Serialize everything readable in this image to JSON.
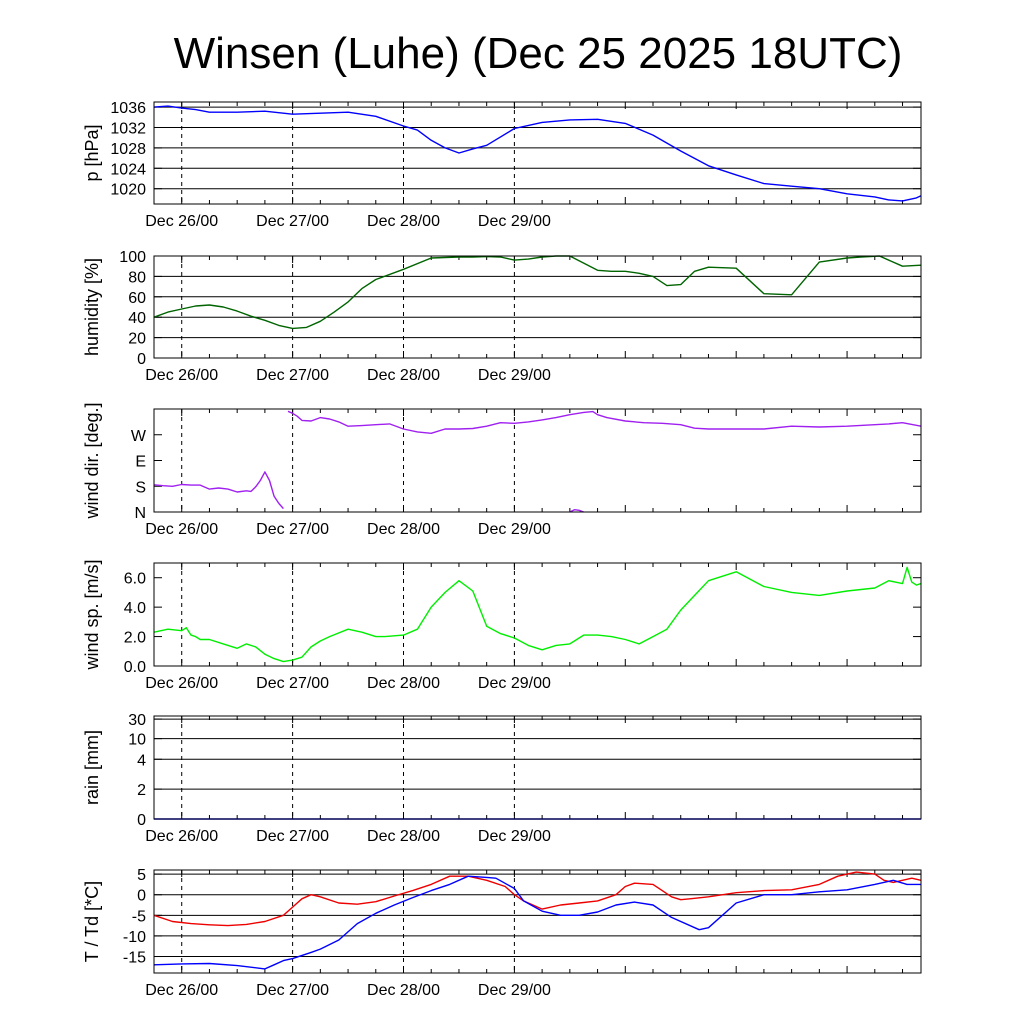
{
  "title": "Winsen (Luhe) (Dec 25 2025 18UTC)",
  "day_labels": [
    "Dec 26/00",
    "Dec 27/00",
    "Dec 28/00",
    "Dec 29/00"
  ],
  "chart_data": [
    {
      "type": "line",
      "ylabel": "p [hPa]",
      "ylim": [
        1017,
        1037
      ],
      "yticks": [
        1020,
        1024,
        1028,
        1032,
        1036
      ],
      "grid": true,
      "series": [
        {
          "color": "#0000ff",
          "x": [
            0,
            3,
            6,
            9,
            12,
            18,
            24,
            30,
            36,
            42,
            48,
            54,
            57,
            60,
            63,
            66,
            69,
            72,
            78,
            84,
            90,
            96,
            102,
            108,
            114,
            120,
            126,
            132,
            138,
            144,
            150,
            156,
            159,
            162,
            165,
            166
          ],
          "y": [
            1036,
            1036.2,
            1035.8,
            1035.5,
            1035,
            1035,
            1035.2,
            1034.6,
            1034.8,
            1035,
            1034.2,
            1032.3,
            1031.5,
            1029.5,
            1028,
            1027,
            1027.8,
            1028.5,
            1031.8,
            1033,
            1033.5,
            1033.6,
            1032.8,
            1030.5,
            1027.4,
            1024.5,
            1022.7,
            1021,
            1020.5,
            1020,
            1019,
            1018.4,
            1017.8,
            1017.6,
            1018.2,
            1018.6
          ]
        }
      ]
    },
    {
      "type": "line",
      "ylabel": "humidity [%]",
      "ylim": [
        0,
        100
      ],
      "yticks": [
        0,
        20,
        40,
        60,
        80,
        100
      ],
      "grid": true,
      "series": [
        {
          "color": "#006400",
          "x": [
            0,
            3,
            6,
            9,
            12,
            15,
            18,
            21,
            24,
            27,
            30,
            33,
            36,
            39,
            42,
            45,
            48,
            54,
            60,
            66,
            69,
            72,
            75,
            78,
            81,
            84,
            87,
            90,
            96,
            99,
            102,
            105,
            108,
            111,
            114,
            117,
            120,
            126,
            132,
            138,
            144,
            150,
            153,
            157,
            162,
            166
          ],
          "y": [
            40,
            45,
            48,
            51,
            52,
            50,
            46,
            41,
            37,
            32,
            29,
            30,
            36,
            45,
            55,
            68,
            77,
            87,
            98,
            99,
            99,
            99.5,
            99,
            96,
            97,
            99,
            100,
            100,
            86,
            85,
            85,
            83,
            80,
            71,
            72,
            85,
            89,
            88,
            63,
            62,
            94,
            98,
            99,
            100,
            90,
            91
          ]
        }
      ]
    },
    {
      "type": "line",
      "ylabel": "wind dir. [deg.]",
      "ylim": [
        0,
        360
      ],
      "yticks": [
        0,
        90,
        180,
        270
      ],
      "ytick_labels": [
        "N",
        "S",
        "E",
        "W"
      ],
      "grid": false,
      "series": [
        {
          "color": "#a020f0",
          "segments": [
            {
              "x": [
                0,
                2,
                4,
                6,
                8,
                10,
                12,
                14,
                16,
                18,
                20,
                21,
                22,
                23,
                24,
                25,
                26,
                27,
                28
              ],
              "y": [
                95,
                92,
                90,
                96,
                94,
                94,
                80,
                84,
                80,
                70,
                74,
                72,
                88,
                110,
                140,
                110,
                55,
                30,
                12
              ]
            },
            {
              "x": [
                29,
                30,
                31,
                32,
                34,
                36,
                38,
                40,
                42,
                45,
                48,
                51,
                54,
                57,
                60,
                63,
                66,
                69,
                72,
                75,
                78,
                81,
                84,
                87,
                90,
                93,
                95,
                96,
                98,
                102,
                106,
                110,
                114,
                117,
                120,
                126,
                132,
                138,
                144,
                150,
                156,
                159,
                162,
                166
              ],
              "y": [
                352,
                345,
                335,
                320,
                318,
                330,
                325,
                315,
                300,
                302,
                305,
                308,
                290,
                280,
                275,
                290,
                290,
                292,
                300,
                312,
                310,
                315,
                322,
                330,
                340,
                348,
                351,
                340,
                330,
                318,
                312,
                310,
                305,
                293,
                290,
                290,
                290,
                300,
                297,
                300,
                305,
                308,
                312,
                300
              ]
            },
            {
              "x": [
                90,
                91,
                92,
                93
              ],
              "y": [
                0,
                8,
                6,
                0
              ]
            }
          ]
        }
      ]
    },
    {
      "type": "line",
      "ylabel": "wind sp. [m/s]",
      "ylim": [
        0,
        7
      ],
      "yticks": [
        0,
        2,
        4,
        6
      ],
      "ytick_labels": [
        "0.0",
        "2.0",
        "4.0",
        "6.0"
      ],
      "grid": false,
      "series": [
        {
          "color": "#00ee00",
          "x": [
            0,
            3,
            6,
            7,
            8,
            9,
            10,
            12,
            15,
            18,
            20,
            22,
            24,
            26,
            27,
            28,
            30,
            32,
            34,
            36,
            38,
            42,
            45,
            48,
            50,
            54,
            57,
            60,
            63,
            66,
            69,
            72,
            75,
            78,
            81,
            84,
            87,
            90,
            93,
            96,
            99,
            102,
            105,
            108,
            111,
            114,
            117,
            120,
            126,
            132,
            138,
            144,
            150,
            156,
            159,
            162,
            163,
            164,
            165,
            166
          ],
          "y": [
            2.3,
            2.5,
            2.4,
            2.6,
            2.1,
            2.0,
            1.8,
            1.8,
            1.5,
            1.2,
            1.5,
            1.3,
            0.8,
            0.5,
            0.4,
            0.3,
            0.4,
            0.6,
            1.3,
            1.7,
            2.0,
            2.5,
            2.3,
            2.0,
            2.0,
            2.1,
            2.5,
            4.0,
            5.0,
            5.8,
            5.1,
            2.7,
            2.2,
            1.9,
            1.4,
            1.1,
            1.4,
            1.5,
            2.1,
            2.1,
            2.0,
            1.8,
            1.5,
            2.0,
            2.5,
            3.8,
            4.8,
            5.8,
            6.4,
            5.4,
            5.0,
            4.8,
            5.1,
            5.3,
            5.8,
            5.6,
            6.7,
            5.7,
            5.5,
            5.6
          ]
        }
      ]
    },
    {
      "type": "line",
      "ylabel": "rain [mm]",
      "yticks": [
        0,
        2,
        4,
        10,
        30
      ],
      "grid": true,
      "series": [
        {
          "color": "#0000ff",
          "x": [
            0,
            166
          ],
          "y": [
            0,
            0
          ]
        }
      ]
    },
    {
      "type": "line",
      "ylabel": "T / Td [*C]",
      "ylim": [
        -19,
        6
      ],
      "yticks": [
        -15,
        -10,
        -5,
        0,
        5
      ],
      "grid": true,
      "series": [
        {
          "color": "#ee0000",
          "x": [
            0,
            4,
            8,
            12,
            16,
            20,
            24,
            28,
            30,
            32,
            34,
            36,
            40,
            44,
            48,
            52,
            56,
            60,
            64,
            68,
            72,
            76,
            78,
            80,
            84,
            88,
            92,
            96,
            100,
            102,
            104,
            108,
            112,
            114,
            116,
            120,
            126,
            132,
            138,
            144,
            148,
            152,
            156,
            158,
            160,
            162,
            164,
            166
          ],
          "y": [
            -5,
            -6.5,
            -7,
            -7.3,
            -7.5,
            -7.2,
            -6.5,
            -5,
            -3,
            -1,
            0,
            -0.5,
            -2,
            -2.3,
            -1.7,
            -0.3,
            1,
            2.5,
            4.5,
            4.5,
            3.5,
            2,
            0,
            -1.5,
            -3.5,
            -2.5,
            -2,
            -1.5,
            0,
            2,
            2.8,
            2.5,
            -0.5,
            -1.2,
            -1,
            -0.5,
            0.5,
            1,
            1.2,
            2.5,
            4.5,
            5.5,
            5,
            3.5,
            3,
            3.5,
            4,
            3.5
          ]
        },
        {
          "color": "#0000ff",
          "x": [
            0,
            6,
            12,
            18,
            24,
            26,
            28,
            30,
            34,
            36,
            40,
            44,
            48,
            52,
            56,
            60,
            64,
            68,
            72,
            74,
            78,
            80,
            84,
            88,
            92,
            96,
            100,
            104,
            108,
            112,
            118,
            120,
            126,
            132,
            138,
            144,
            150,
            156,
            160,
            163,
            166
          ],
          "y": [
            -17,
            -16.8,
            -16.7,
            -17.2,
            -18,
            -17,
            -16,
            -15.5,
            -14,
            -13.2,
            -11,
            -7,
            -4.5,
            -2.5,
            -0.7,
            1,
            2.5,
            4.5,
            4.2,
            4,
            1.5,
            -1.5,
            -4,
            -5,
            -5,
            -4.2,
            -2.5,
            -1.8,
            -2.5,
            -5.5,
            -8.5,
            -8,
            -2,
            0,
            0,
            0.7,
            1.2,
            2.5,
            3.5,
            2.5,
            2.5
          ]
        }
      ]
    }
  ]
}
